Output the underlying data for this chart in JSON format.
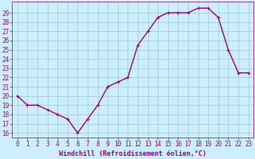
{
  "x": [
    0,
    1,
    2,
    3,
    4,
    5,
    6,
    7,
    8,
    9,
    10,
    11,
    12,
    13,
    14,
    15,
    16,
    17,
    18,
    19,
    20,
    21,
    22,
    23
  ],
  "y": [
    20,
    19,
    19,
    18.5,
    18,
    17.5,
    16,
    17.5,
    19,
    21,
    21.5,
    22,
    25.5,
    27,
    28.5,
    29,
    29,
    29,
    29.5,
    29.5,
    28.5,
    25,
    22.5,
    22.5
  ],
  "line_color": "#990099",
  "marker": "+",
  "bg_color": "#cceeff",
  "grid_color": "#99cccc",
  "xlabel": "Windchill (Refroidissement éolien,°C)",
  "xlabel_color": "#990099",
  "ylabel_ticks": [
    16,
    17,
    18,
    19,
    20,
    21,
    22,
    23,
    24,
    25,
    26,
    27,
    28,
    29
  ],
  "xlim": [
    -0.5,
    23.5
  ],
  "ylim": [
    15.5,
    30.2
  ],
  "xticks": [
    0,
    1,
    2,
    3,
    4,
    5,
    6,
    7,
    8,
    9,
    10,
    11,
    12,
    13,
    14,
    15,
    16,
    17,
    18,
    19,
    20,
    21,
    22,
    23
  ],
  "tick_color": "#990099",
  "axis_color": "#990099",
  "font_size": 5.5,
  "marker_size": 3,
  "line_width": 1.0
}
